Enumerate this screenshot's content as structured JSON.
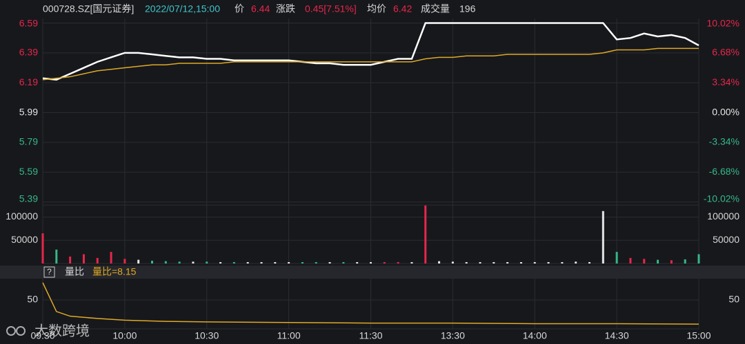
{
  "header": {
    "code": "000728.SZ[国元证券]",
    "datetime": "2022/07/12,15:00",
    "price_label": "价",
    "price": 6.44,
    "change_label": "涨跌",
    "change": "0.45[7.51%]",
    "avg_label": "均价",
    "avg": 6.42,
    "volume_label": "成交量",
    "volume": 196
  },
  "watermark": "大数跨境",
  "chart_data": [
    {
      "type": "line",
      "xlim": [
        0,
        240
      ],
      "ylim": [
        5.37,
        6.62
      ],
      "yticks": [
        6.59,
        6.39,
        6.19,
        5.99,
        5.79,
        5.59,
        5.39
      ],
      "y2lim": [
        -10.35,
        10.52
      ],
      "y2ticks": [
        {
          "value": 10.02,
          "label": "10.02%"
        },
        {
          "value": 6.68,
          "label": "6.68%"
        },
        {
          "value": 3.34,
          "label": "3.34%"
        },
        {
          "value": 0,
          "label": "0.00%"
        },
        {
          "value": -3.34,
          "label": "-3.34%"
        },
        {
          "value": -6.68,
          "label": "-6.68%"
        },
        {
          "value": -10.02,
          "label": "-10.02%"
        }
      ],
      "up_color": "#e8264a",
      "down_color": "#35b888",
      "flat_color": "#e6e6e6",
      "x": [
        0,
        5,
        10,
        15,
        20,
        25,
        30,
        35,
        40,
        45,
        50,
        55,
        60,
        65,
        70,
        75,
        80,
        85,
        90,
        95,
        100,
        105,
        110,
        115,
        120,
        125,
        130,
        135,
        140,
        145,
        150,
        155,
        160,
        165,
        170,
        175,
        180,
        185,
        190,
        195,
        200,
        205,
        210,
        215,
        220,
        225,
        230,
        235,
        240
      ],
      "series": [
        {
          "color": "#ffffff",
          "values": [
            6.22,
            6.21,
            6.25,
            6.29,
            6.33,
            6.36,
            6.39,
            6.39,
            6.38,
            6.37,
            6.36,
            6.36,
            6.35,
            6.35,
            6.34,
            6.34,
            6.34,
            6.34,
            6.34,
            6.33,
            6.32,
            6.32,
            6.31,
            6.31,
            6.31,
            6.33,
            6.35,
            6.35,
            6.59,
            6.59,
            6.59,
            6.59,
            6.59,
            6.59,
            6.59,
            6.59,
            6.59,
            6.59,
            6.59,
            6.59,
            6.59,
            6.59,
            6.48,
            6.49,
            6.52,
            6.5,
            6.51,
            6.49,
            6.44
          ]
        },
        {
          "color": "#e0aa24",
          "values": [
            6.21,
            6.22,
            6.23,
            6.25,
            6.27,
            6.28,
            6.29,
            6.3,
            6.31,
            6.31,
            6.32,
            6.32,
            6.32,
            6.32,
            6.33,
            6.33,
            6.33,
            6.33,
            6.33,
            6.33,
            6.33,
            6.33,
            6.33,
            6.33,
            6.33,
            6.33,
            6.33,
            6.33,
            6.35,
            6.36,
            6.36,
            6.37,
            6.37,
            6.37,
            6.38,
            6.38,
            6.38,
            6.38,
            6.38,
            6.38,
            6.38,
            6.39,
            6.41,
            6.41,
            6.41,
            6.42,
            6.42,
            6.42,
            6.42
          ]
        }
      ]
    },
    {
      "type": "bar",
      "xlim": [
        0,
        240
      ],
      "ylim": [
        0,
        126000
      ],
      "yticks": [
        100000,
        50000
      ],
      "x": [
        0,
        5,
        10,
        15,
        20,
        25,
        30,
        35,
        40,
        45,
        50,
        55,
        60,
        65,
        70,
        75,
        80,
        85,
        90,
        95,
        100,
        105,
        110,
        115,
        120,
        125,
        130,
        135,
        140,
        145,
        150,
        155,
        160,
        165,
        170,
        175,
        180,
        185,
        190,
        195,
        200,
        205,
        210,
        215,
        220,
        225,
        230,
        235,
        240
      ],
      "values": [
        65000,
        30000,
        15000,
        20000,
        12000,
        25000,
        10000,
        8000,
        6000,
        5000,
        4000,
        4000,
        4000,
        3000,
        3000,
        3000,
        3000,
        3000,
        3000,
        3000,
        3000,
        3000,
        3000,
        3000,
        3000,
        3000,
        3000,
        3000,
        125000,
        5000,
        4000,
        3000,
        3000,
        3000,
        3000,
        3000,
        3000,
        3000,
        3000,
        4000,
        3000,
        113000,
        25000,
        12000,
        10000,
        8000,
        7000,
        9000,
        20000
      ]
    },
    {
      "type": "line",
      "label": "量比",
      "value_text": "量比=8.15",
      "xlim": [
        0,
        240
      ],
      "ylim": [
        0,
        87
      ],
      "yticks": [
        50
      ],
      "xticks": [
        {
          "value": 0,
          "label": "09:30"
        },
        {
          "value": 30,
          "label": "10:00"
        },
        {
          "value": 60,
          "label": "10:30"
        },
        {
          "value": 90,
          "label": "11:00"
        },
        {
          "value": 120,
          "label": "11:30"
        },
        {
          "value": 150,
          "label": "13:30"
        },
        {
          "value": 180,
          "label": "14:00"
        },
        {
          "value": 210,
          "label": "14:30"
        },
        {
          "value": 240,
          "label": "15:00"
        }
      ],
      "x": [
        0,
        5,
        10,
        15,
        20,
        30,
        45,
        60,
        90,
        120,
        150,
        180,
        210,
        240
      ],
      "series": [
        {
          "color": "#e0aa24",
          "values": [
            80,
            30,
            22,
            20,
            18,
            15,
            13,
            12,
            11,
            10,
            10,
            9,
            9,
            8.15
          ]
        }
      ]
    }
  ]
}
